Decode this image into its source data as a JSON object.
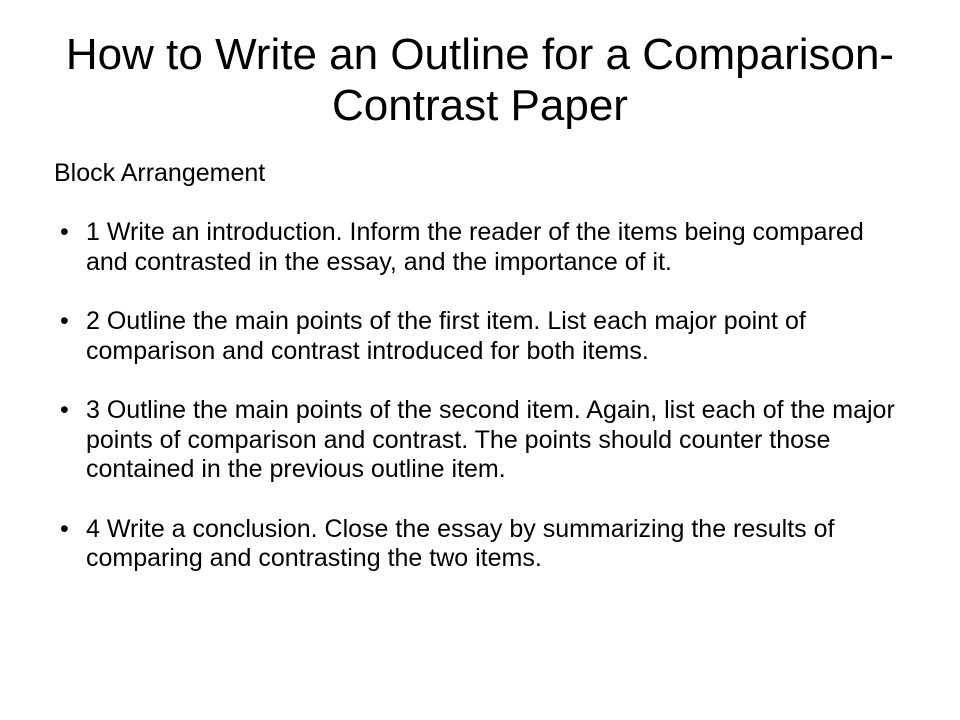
{
  "title": "How to Write an Outline for a Comparison-Contrast Paper",
  "subtitle": "Block Arrangement",
  "points": [
    "1 Write an introduction. Inform the reader of the items being compared and contrasted in the essay, and the importance of it.",
    "2 Outline the main points of the first item. List each major point of comparison and contrast introduced for both items.",
    "3 Outline the main points of the second item. Again, list each of the major points of comparison and contrast. The points should counter those contained in the previous outline item.",
    "4 Write a conclusion. Close the essay by summarizing the results of comparing and contrasting the two items."
  ],
  "colors": {
    "background": "#ffffff",
    "text": "#000000"
  },
  "typography": {
    "title_fontsize": 44,
    "body_fontsize": 25,
    "font_family": "Arial"
  }
}
